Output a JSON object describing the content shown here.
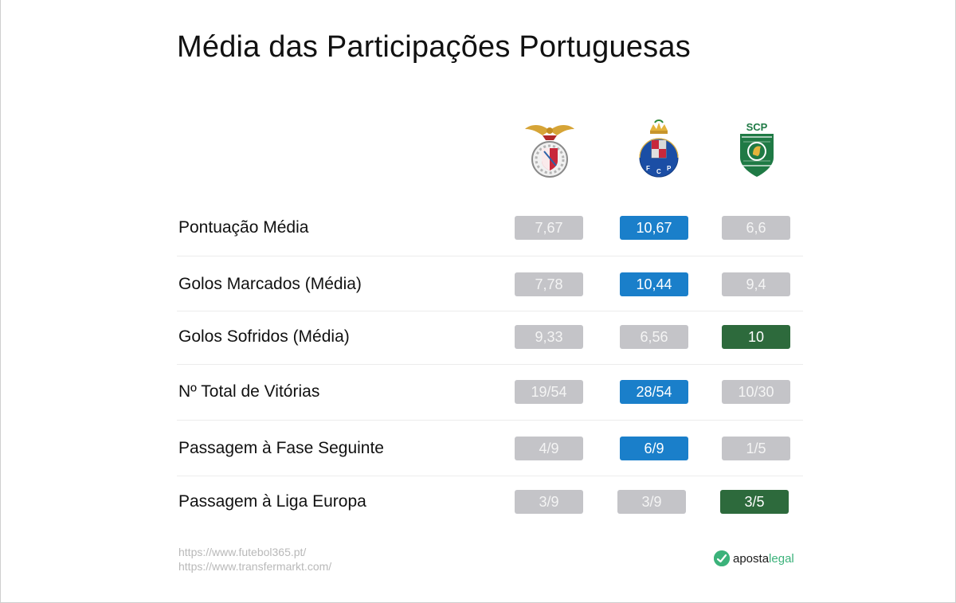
{
  "title": "Média das Participações Portuguesas",
  "clubs": [
    {
      "id": "benfica",
      "icon": "benfica-crest-icon"
    },
    {
      "id": "porto",
      "icon": "porto-crest-icon"
    },
    {
      "id": "sporting",
      "icon": "sporting-crest-icon",
      "crest_text": "SCP"
    }
  ],
  "colors": {
    "neutral": "#c4c4c8",
    "porto_highlight": "#1a7fca",
    "sporting_highlight": "#2d6a3c",
    "brand_green": "#3bb27a"
  },
  "rows": [
    {
      "label": "Pontuação Média",
      "values": [
        "7,67",
        "10,67",
        "6,6"
      ],
      "styles": [
        "gray",
        "blue",
        "gray"
      ]
    },
    {
      "label": "Golos Marcados (Média)",
      "values": [
        "7,78",
        "10,44",
        "9,4"
      ],
      "styles": [
        "gray",
        "blue",
        "gray"
      ]
    },
    {
      "label": "Golos Sofridos (Média)",
      "values": [
        "9,33",
        "6,56",
        "10"
      ],
      "styles": [
        "gray",
        "gray",
        "green"
      ]
    },
    {
      "label": "Nº Total de Vitórias",
      "values": [
        "19/54",
        "28/54",
        "10/30"
      ],
      "styles": [
        "gray",
        "blue",
        "gray"
      ]
    },
    {
      "label": "Passagem à Fase Seguinte",
      "values": [
        "4/9",
        "6/9",
        "1/5"
      ],
      "styles": [
        "gray",
        "blue",
        "gray"
      ]
    },
    {
      "label": "Passagem à Liga Europa",
      "values": [
        "3/9",
        "3/9",
        "3/5"
      ],
      "styles": [
        "gray",
        "gray",
        "green"
      ]
    }
  ],
  "sources": [
    "https://www.futebol365.pt/",
    "https://www.transfermarkt.com/"
  ],
  "brand": {
    "part1": "aposta",
    "part2": "legal",
    "icon": "aposta-legal-logo-icon"
  }
}
